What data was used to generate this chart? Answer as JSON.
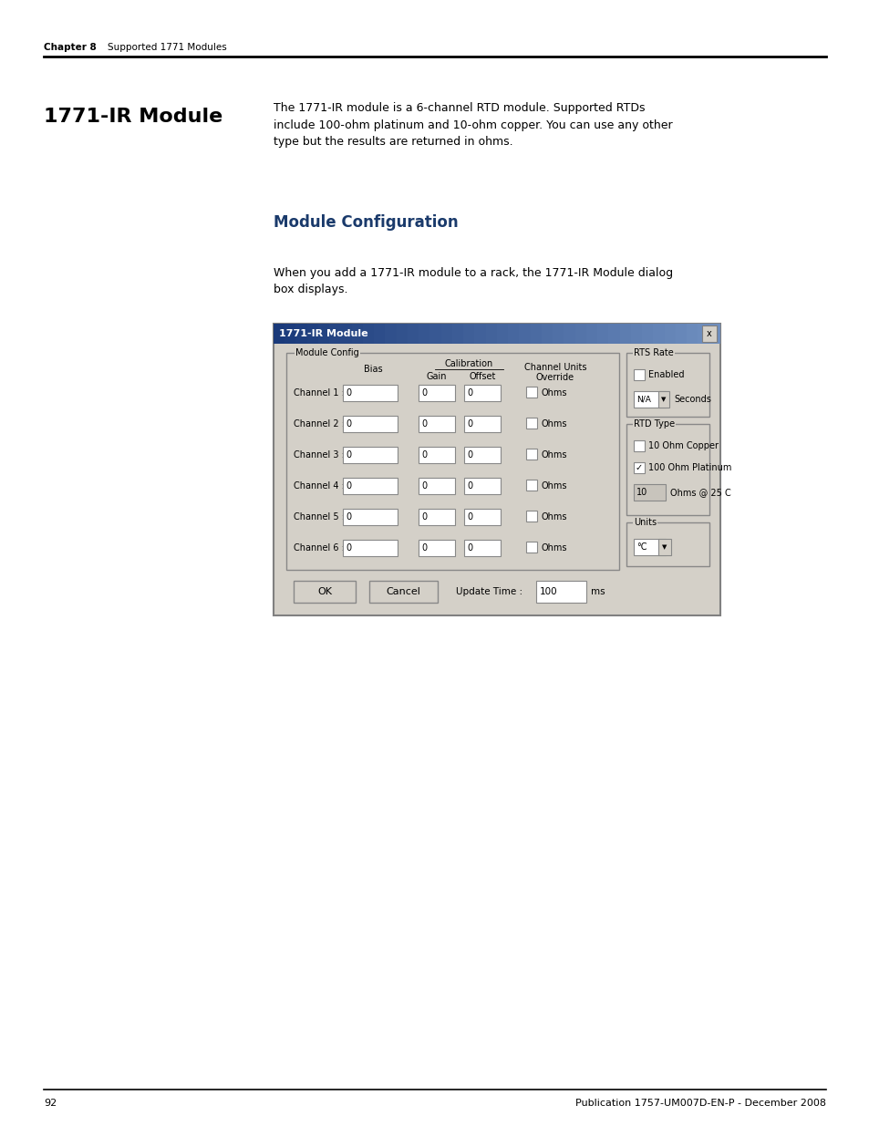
{
  "page_bg": "#ffffff",
  "header_chapter": "Chapter 8",
  "header_section": "Supported 1771 Modules",
  "footer_page": "92",
  "footer_pub": "Publication 1757-UM007D-EN-P - December 2008",
  "section_title": "1771-IR Module",
  "body_text1": "The 1771-IR module is a 6-channel RTD module. Supported RTDs\ninclude 100-ohm platinum and 10-ohm copper. You can use any other\ntype but the results are returned in ohms.",
  "subsection_title": "Module Configuration",
  "body_text2": "When you add a 1771-IR module to a rack, the 1771-IR Module dialog\nbox displays.",
  "dialog_title": "1771-IR Module",
  "dialog_title_bg_left": "#1a3a7a",
  "dialog_title_bg_right": "#7090c0",
  "dialog_title_color": "#ffffff",
  "dialog_bg": "#d4d0c8",
  "channels": [
    "Channel 1 :",
    "Channel 2 :",
    "Channel 3 :",
    "Channel 4 :",
    "Channel 5 :",
    "Channel 6 :"
  ]
}
